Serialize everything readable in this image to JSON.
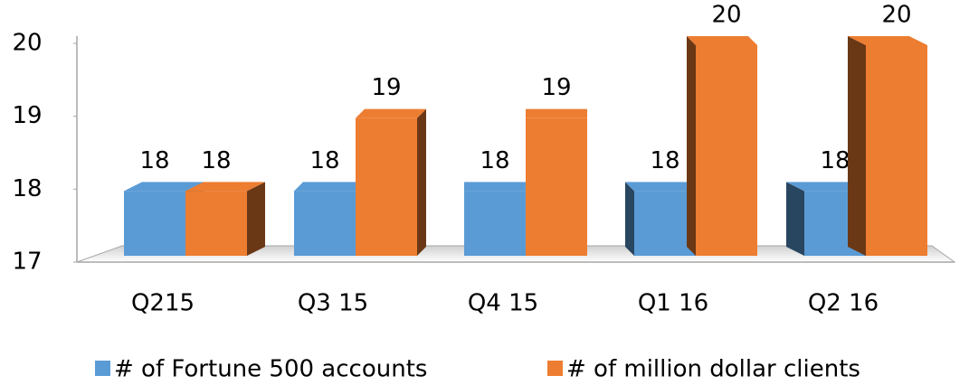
{
  "chart_data": {
    "type": "bar3d",
    "categories": [
      "Q215",
      "Q3 15",
      "Q4 15",
      "Q1 16",
      "Q2 16"
    ],
    "series": [
      {
        "name": "# of Fortune 500 accounts",
        "color": "#5b9bd5",
        "values": [
          18,
          18,
          18,
          18,
          18
        ]
      },
      {
        "name": "# of million dollar clients",
        "color": "#ed7d31",
        "values": [
          18,
          19,
          19,
          20,
          20
        ]
      }
    ],
    "ylim": [
      17,
      20
    ],
    "yticks": [
      17,
      18,
      19,
      20
    ],
    "legend": "bottom"
  }
}
